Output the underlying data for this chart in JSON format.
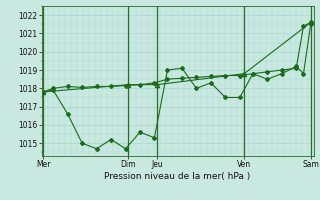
{
  "xlabel": "Pression niveau de la mer( hPa )",
  "background_color": "#c8e8e0",
  "plot_bg_color": "#c8e8e0",
  "line_color": "#1a6b1a",
  "grid_color": "#a8d8d0",
  "ylim": [
    1014.3,
    1022.5
  ],
  "yticks": [
    1015,
    1016,
    1017,
    1018,
    1019,
    1020,
    1021,
    1022
  ],
  "xlim": [
    0,
    9.4
  ],
  "vlines_x": [
    0.05,
    3.0,
    4.0,
    7.0,
    9.3
  ],
  "series1_x": [
    0.05,
    0.4,
    0.9,
    1.4,
    1.9,
    2.4,
    2.9,
    3.4,
    3.9,
    4.35,
    4.85,
    5.35,
    5.85,
    6.35,
    6.85,
    7.3,
    7.8,
    8.3,
    8.8,
    9.05,
    9.3
  ],
  "series1_y": [
    1017.8,
    1017.9,
    1016.6,
    1015.0,
    1014.7,
    1015.2,
    1014.7,
    1015.6,
    1015.3,
    1019.0,
    1019.1,
    1018.0,
    1018.3,
    1017.5,
    1017.5,
    1018.8,
    1018.5,
    1018.8,
    1019.2,
    1018.8,
    1021.5
  ],
  "series2_x": [
    0.05,
    0.4,
    0.9,
    1.4,
    1.9,
    2.4,
    2.9,
    3.4,
    3.9,
    4.35,
    4.85,
    5.35,
    5.85,
    6.35,
    6.85,
    7.3,
    7.8,
    8.3,
    8.8,
    9.05,
    9.3
  ],
  "series2_y": [
    1017.8,
    1018.0,
    1018.1,
    1018.05,
    1018.1,
    1018.1,
    1018.15,
    1018.2,
    1018.3,
    1018.5,
    1018.55,
    1018.6,
    1018.65,
    1018.7,
    1018.7,
    1018.8,
    1018.9,
    1019.0,
    1019.1,
    1021.4,
    1021.6
  ],
  "series3_x": [
    0.05,
    3.0,
    4.0,
    7.0,
    9.3
  ],
  "series3_y": [
    1017.8,
    1018.2,
    1018.2,
    1018.8,
    1021.6
  ],
  "xtick_positions": [
    0.05,
    3.0,
    4.0,
    7.0,
    9.3
  ],
  "xtick_labels": [
    "Mer",
    "Dim",
    "Jeu",
    "Ven",
    "Sam"
  ]
}
